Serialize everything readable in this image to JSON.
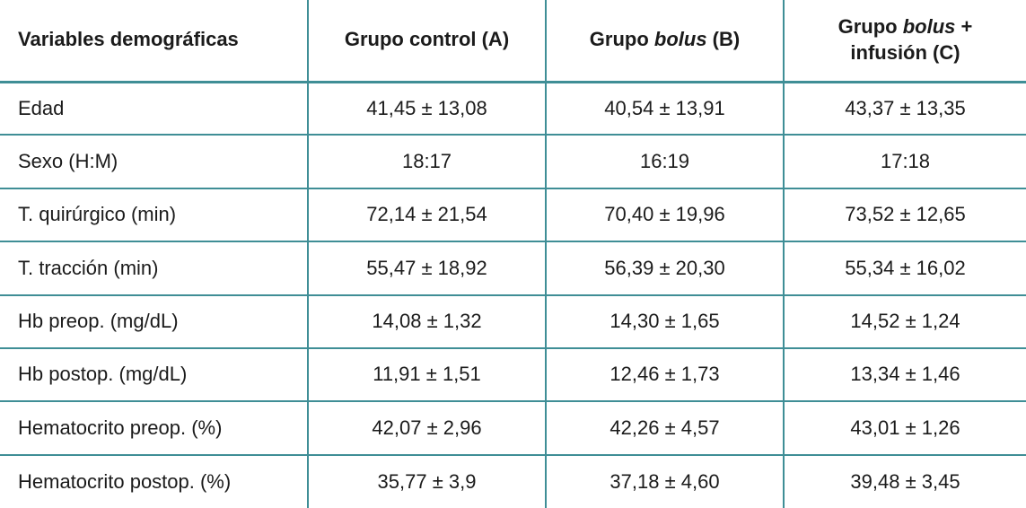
{
  "colors": {
    "rule_teal": "#3f8e96",
    "text": "#1b1b1b",
    "background": "#ffffff"
  },
  "table": {
    "header": [
      {
        "label": "Variables demográficas"
      },
      {
        "label": "Grupo control (A)"
      },
      {
        "pre": "Grupo ",
        "italic": "bolus",
        "post": " (B)"
      },
      {
        "pre": "Grupo ",
        "italic": "bolus",
        "post": " +",
        "line2": "infusión (C)"
      }
    ],
    "rows": [
      {
        "label": "Edad",
        "a": "41,45 ± 13,08",
        "b": "40,54 ± 13,91",
        "c": "43,37 ± 13,35"
      },
      {
        "label": "Sexo (H:M)",
        "a": "18:17",
        "b": "16:19",
        "c": "17:18"
      },
      {
        "label": "T. quirúrgico (min)",
        "a": "72,14 ± 21,54",
        "b": "70,40 ± 19,96",
        "c": "73,52 ± 12,65"
      },
      {
        "label": "T. tracción (min)",
        "a": "55,47 ± 18,92",
        "b": "56,39 ± 20,30",
        "c": "55,34 ± 16,02"
      },
      {
        "label": "Hb preop. (mg/dL)",
        "a": "14,08 ± 1,32",
        "b": "14,30 ± 1,65",
        "c": "14,52 ± 1,24"
      },
      {
        "label": "Hb postop. (mg/dL)",
        "a": "11,91 ± 1,51",
        "b": "12,46 ± 1,73",
        "c": "13,34 ± 1,46"
      },
      {
        "label": "Hematocrito preop. (%)",
        "a": "42,07 ± 2,96",
        "b": "42,26 ± 4,57",
        "c": "43,01 ± 1,26"
      },
      {
        "label": "Hematocrito postop. (%)",
        "a": "35,77 ± 3,9",
        "b": "37,18 ± 4,60",
        "c": "39,48 ± 3,45"
      }
    ]
  }
}
